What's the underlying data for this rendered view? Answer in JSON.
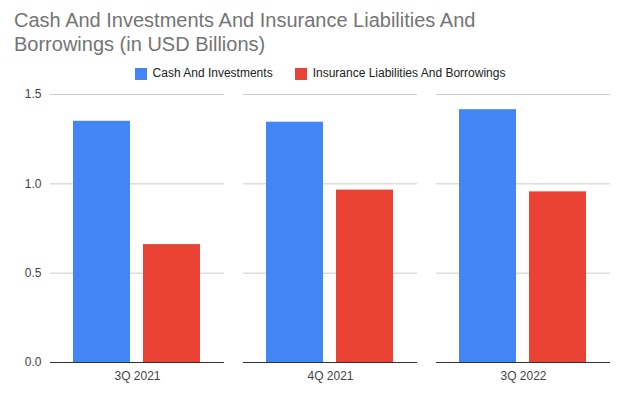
{
  "chart_data": {
    "type": "bar",
    "title": "Cash And Investments And Insurance Liabilities And Borrowings (in USD Billions)",
    "categories": [
      "3Q 2021",
      "4Q 2021",
      "3Q 2022"
    ],
    "series": [
      {
        "name": "Cash And Investments",
        "color": "#4285f4",
        "values": [
          1.35,
          1.345,
          1.415
        ]
      },
      {
        "name": "Insurance Liabilities And Borrowings",
        "color": "#ea4335",
        "values": [
          0.66,
          0.965,
          0.955
        ]
      }
    ],
    "ylim": [
      0,
      1.5
    ],
    "yticks": [
      {
        "value": 0,
        "label": "0.0"
      },
      {
        "value": 0.5,
        "label": "0.5"
      },
      {
        "value": 1,
        "label": "1.0"
      },
      {
        "value": 1.5,
        "label": "1.5"
      }
    ],
    "grid": true,
    "legend": "top"
  }
}
